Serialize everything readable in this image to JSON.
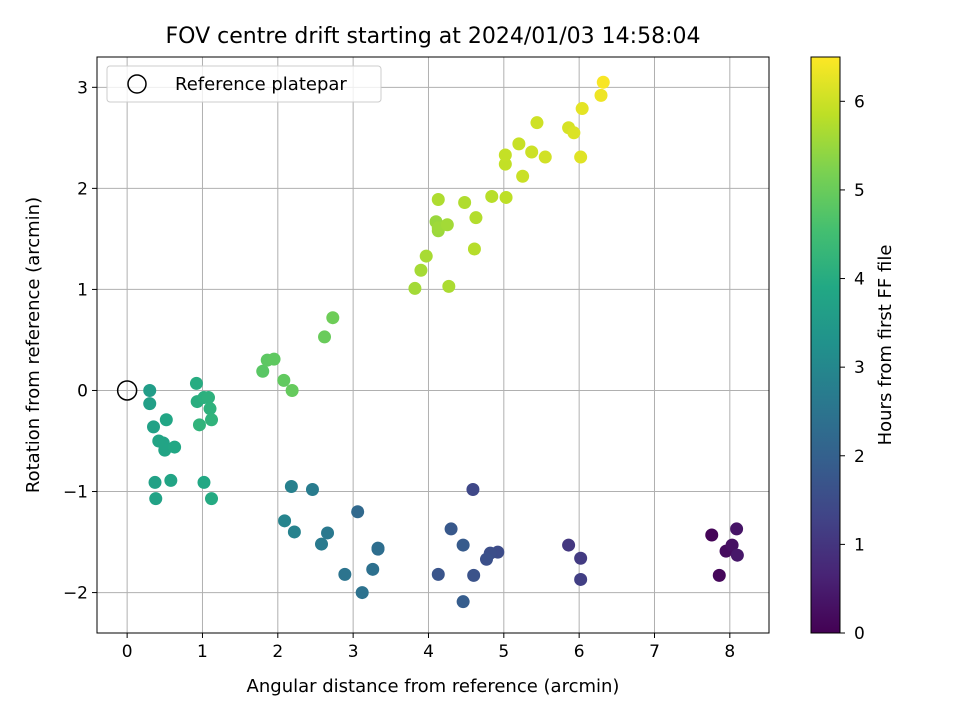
{
  "chart_data": {
    "type": "scatter",
    "title": "FOV centre drift starting at 2024/01/03 14:58:04",
    "xlabel": "Angular distance from reference (arcmin)",
    "ylabel": "Rotation from reference (arcmin)",
    "colorbar_label": "Hours from first FF file",
    "colormap": "viridis",
    "colorbar_range": [
      0,
      6.5
    ],
    "colorbar_ticks": [
      0,
      1,
      2,
      3,
      4,
      5,
      6
    ],
    "xlim": [
      -0.4,
      8.52
    ],
    "ylim": [
      -2.4,
      3.3
    ],
    "xticks": [
      0,
      1,
      2,
      3,
      4,
      5,
      6,
      7,
      8
    ],
    "yticks": [
      -2,
      -1,
      0,
      1,
      2,
      3
    ],
    "grid": true,
    "legend": {
      "position": "top-left",
      "entries": [
        "Reference platepar"
      ]
    },
    "reference_point": {
      "x": 0,
      "y": 0,
      "label": "Reference platepar",
      "marker": "open-circle"
    },
    "points": [
      {
        "x": 7.76,
        "y": -1.43,
        "hours": 0.05
      },
      {
        "x": 7.86,
        "y": -1.83,
        "hours": 0.12
      },
      {
        "x": 7.95,
        "y": -1.59,
        "hours": 0.2
      },
      {
        "x": 8.03,
        "y": -1.53,
        "hours": 0.28
      },
      {
        "x": 8.09,
        "y": -1.37,
        "hours": 0.35
      },
      {
        "x": 8.1,
        "y": -1.63,
        "hours": 0.42
      },
      {
        "x": 5.86,
        "y": -1.53,
        "hours": 1.05
      },
      {
        "x": 6.02,
        "y": -1.66,
        "hours": 1.12
      },
      {
        "x": 6.02,
        "y": -1.87,
        "hours": 1.2
      },
      {
        "x": 4.59,
        "y": -0.98,
        "hours": 1.4
      },
      {
        "x": 4.92,
        "y": -1.6,
        "hours": 1.5
      },
      {
        "x": 4.82,
        "y": -1.61,
        "hours": 1.55
      },
      {
        "x": 4.77,
        "y": -1.67,
        "hours": 1.6
      },
      {
        "x": 4.6,
        "y": -1.83,
        "hours": 1.65
      },
      {
        "x": 4.13,
        "y": -1.82,
        "hours": 1.7
      },
      {
        "x": 4.3,
        "y": -1.37,
        "hours": 1.78
      },
      {
        "x": 4.46,
        "y": -1.53,
        "hours": 1.85
      },
      {
        "x": 4.46,
        "y": -2.09,
        "hours": 1.9
      },
      {
        "x": 3.06,
        "y": -1.2,
        "hours": 2.2
      },
      {
        "x": 3.33,
        "y": -1.57,
        "hours": 2.3
      },
      {
        "x": 3.33,
        "y": -1.56,
        "hours": 2.35
      },
      {
        "x": 3.26,
        "y": -1.77,
        "hours": 2.4
      },
      {
        "x": 3.12,
        "y": -2.0,
        "hours": 2.45
      },
      {
        "x": 2.89,
        "y": -1.82,
        "hours": 2.5
      },
      {
        "x": 2.66,
        "y": -1.41,
        "hours": 2.6
      },
      {
        "x": 2.58,
        "y": -1.52,
        "hours": 2.65
      },
      {
        "x": 2.46,
        "y": -0.98,
        "hours": 2.7
      },
      {
        "x": 2.18,
        "y": -0.95,
        "hours": 2.8
      },
      {
        "x": 2.22,
        "y": -1.4,
        "hours": 2.85
      },
      {
        "x": 2.09,
        "y": -1.29,
        "hours": 2.9
      },
      {
        "x": 0.3,
        "y": 0.0,
        "hours": 3.6
      },
      {
        "x": 0.3,
        "y": -0.13,
        "hours": 3.65
      },
      {
        "x": 0.35,
        "y": -0.36,
        "hours": 3.7
      },
      {
        "x": 0.48,
        "y": -0.52,
        "hours": 3.75
      },
      {
        "x": 0.5,
        "y": -0.59,
        "hours": 3.78
      },
      {
        "x": 0.42,
        "y": -0.5,
        "hours": 3.8
      },
      {
        "x": 0.52,
        "y": -0.29,
        "hours": 3.85
      },
      {
        "x": 0.63,
        "y": -0.56,
        "hours": 3.88
      },
      {
        "x": 0.37,
        "y": -0.91,
        "hours": 3.7
      },
      {
        "x": 0.38,
        "y": -1.07,
        "hours": 3.72
      },
      {
        "x": 0.58,
        "y": -0.89,
        "hours": 3.8
      },
      {
        "x": 1.02,
        "y": -0.91,
        "hours": 3.9
      },
      {
        "x": 1.12,
        "y": -1.07,
        "hours": 3.95
      },
      {
        "x": 0.92,
        "y": 0.07,
        "hours": 4.0
      },
      {
        "x": 0.93,
        "y": -0.11,
        "hours": 4.05
      },
      {
        "x": 1.02,
        "y": -0.07,
        "hours": 4.1
      },
      {
        "x": 1.08,
        "y": -0.07,
        "hours": 4.12
      },
      {
        "x": 1.1,
        "y": -0.18,
        "hours": 4.15
      },
      {
        "x": 1.12,
        "y": -0.29,
        "hours": 4.18
      },
      {
        "x": 0.96,
        "y": -0.34,
        "hours": 4.2
      },
      {
        "x": 1.8,
        "y": 0.19,
        "hours": 4.8
      },
      {
        "x": 1.86,
        "y": 0.3,
        "hours": 4.85
      },
      {
        "x": 1.95,
        "y": 0.31,
        "hours": 4.88
      },
      {
        "x": 2.08,
        "y": 0.1,
        "hours": 4.9
      },
      {
        "x": 2.19,
        "y": 0.0,
        "hours": 4.95
      },
      {
        "x": 2.62,
        "y": 0.53,
        "hours": 5.0
      },
      {
        "x": 2.73,
        "y": 0.72,
        "hours": 5.05
      },
      {
        "x": 3.82,
        "y": 1.01,
        "hours": 5.6
      },
      {
        "x": 3.9,
        "y": 1.19,
        "hours": 5.62
      },
      {
        "x": 3.97,
        "y": 1.33,
        "hours": 5.65
      },
      {
        "x": 4.1,
        "y": 1.67,
        "hours": 5.5
      },
      {
        "x": 4.13,
        "y": 1.58,
        "hours": 5.52
      },
      {
        "x": 4.13,
        "y": 1.61,
        "hours": 5.55
      },
      {
        "x": 4.25,
        "y": 1.64,
        "hours": 5.6
      },
      {
        "x": 4.27,
        "y": 1.03,
        "hours": 5.68
      },
      {
        "x": 4.13,
        "y": 1.89,
        "hours": 5.7
      },
      {
        "x": 4.48,
        "y": 1.86,
        "hours": 5.72
      },
      {
        "x": 4.63,
        "y": 1.71,
        "hours": 5.75
      },
      {
        "x": 4.61,
        "y": 1.4,
        "hours": 5.78
      },
      {
        "x": 4.84,
        "y": 1.92,
        "hours": 5.8
      },
      {
        "x": 5.03,
        "y": 1.91,
        "hours": 5.85
      },
      {
        "x": 5.02,
        "y": 2.24,
        "hours": 5.9
      },
      {
        "x": 5.02,
        "y": 2.33,
        "hours": 5.92
      },
      {
        "x": 5.2,
        "y": 2.44,
        "hours": 5.95
      },
      {
        "x": 5.25,
        "y": 2.12,
        "hours": 5.97
      },
      {
        "x": 5.37,
        "y": 2.36,
        "hours": 6.0
      },
      {
        "x": 5.44,
        "y": 2.65,
        "hours": 6.02
      },
      {
        "x": 5.55,
        "y": 2.31,
        "hours": 6.05
      },
      {
        "x": 5.86,
        "y": 2.6,
        "hours": 6.1
      },
      {
        "x": 5.93,
        "y": 2.55,
        "hours": 6.15
      },
      {
        "x": 6.02,
        "y": 2.31,
        "hours": 6.2
      },
      {
        "x": 6.04,
        "y": 2.79,
        "hours": 6.25
      },
      {
        "x": 6.29,
        "y": 2.92,
        "hours": 6.35
      },
      {
        "x": 6.32,
        "y": 3.05,
        "hours": 6.45
      }
    ]
  }
}
